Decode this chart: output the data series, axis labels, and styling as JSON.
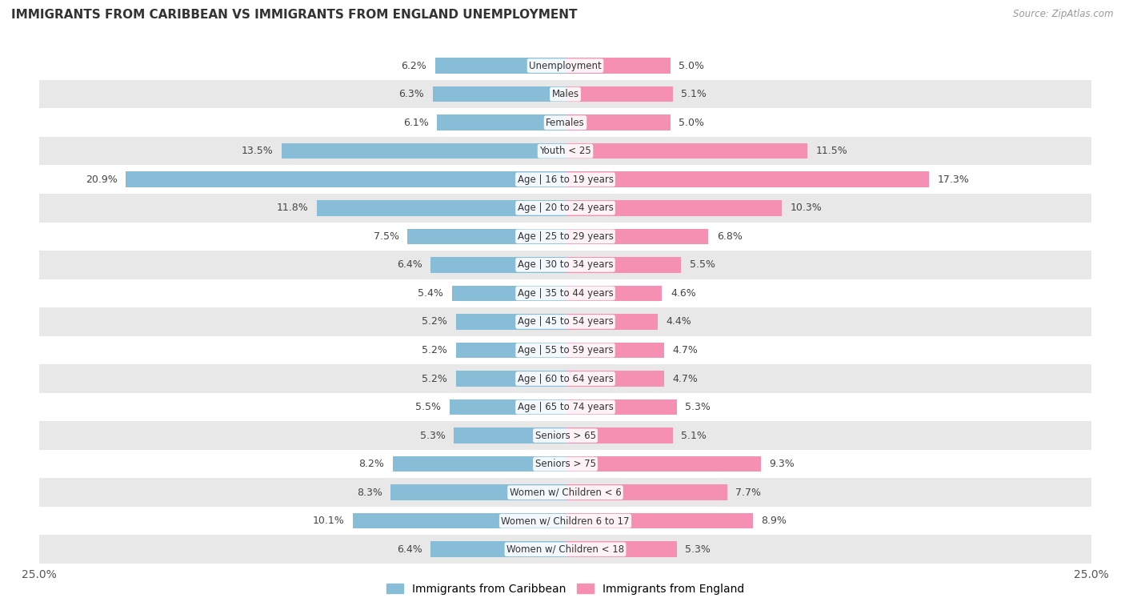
{
  "title": "IMMIGRANTS FROM CARIBBEAN VS IMMIGRANTS FROM ENGLAND UNEMPLOYMENT",
  "source": "Source: ZipAtlas.com",
  "categories": [
    "Unemployment",
    "Males",
    "Females",
    "Youth < 25",
    "Age | 16 to 19 years",
    "Age | 20 to 24 years",
    "Age | 25 to 29 years",
    "Age | 30 to 34 years",
    "Age | 35 to 44 years",
    "Age | 45 to 54 years",
    "Age | 55 to 59 years",
    "Age | 60 to 64 years",
    "Age | 65 to 74 years",
    "Seniors > 65",
    "Seniors > 75",
    "Women w/ Children < 6",
    "Women w/ Children 6 to 17",
    "Women w/ Children < 18"
  ],
  "caribbean_values": [
    6.2,
    6.3,
    6.1,
    13.5,
    20.9,
    11.8,
    7.5,
    6.4,
    5.4,
    5.2,
    5.2,
    5.2,
    5.5,
    5.3,
    8.2,
    8.3,
    10.1,
    6.4
  ],
  "england_values": [
    5.0,
    5.1,
    5.0,
    11.5,
    17.3,
    10.3,
    6.8,
    5.5,
    4.6,
    4.4,
    4.7,
    4.7,
    5.3,
    5.1,
    9.3,
    7.7,
    8.9,
    5.3
  ],
  "caribbean_color": "#88bdd8",
  "england_color": "#f590b2",
  "row_colors": [
    "#ffffff",
    "#e8e8e8"
  ],
  "axis_max": 25.0,
  "legend_caribbean": "Immigrants from Caribbean",
  "legend_england": "Immigrants from England",
  "bar_height": 0.55,
  "label_fontsize": 9,
  "category_fontsize": 8.5,
  "title_fontsize": 11,
  "source_fontsize": 8.5
}
